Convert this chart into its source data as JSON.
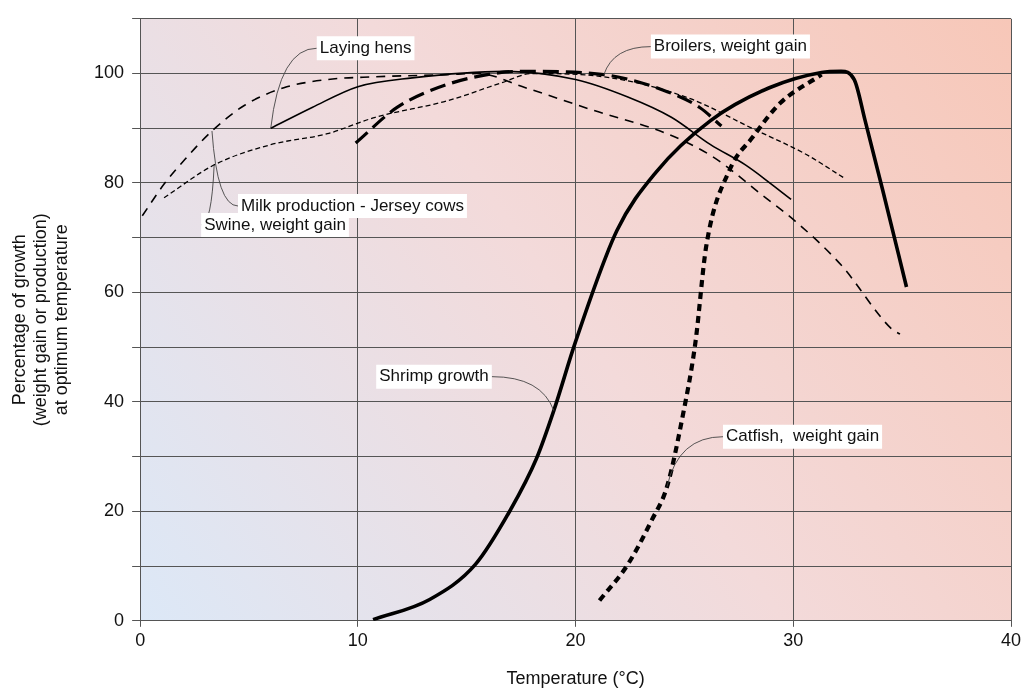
{
  "chart_data": {
    "type": "line",
    "xlabel": "Temperature (°C)",
    "ylabel": "Percentage of growth\n(weight gain or production)\nat optimum temperature",
    "xlim": [
      0,
      40
    ],
    "xticks": [
      0,
      10,
      20,
      30,
      40
    ],
    "ylim": [
      0,
      110
    ],
    "yticks": [
      0,
      {
        "value": 10,
        "label": null
      },
      20,
      {
        "value": 30,
        "label": null
      },
      40,
      {
        "value": 50,
        "label": null
      },
      60,
      {
        "value": 70,
        "label": null
      },
      80,
      {
        "value": 90,
        "label": null
      },
      100,
      {
        "value": 110,
        "label": null
      }
    ],
    "grid": true,
    "legend": false,
    "marker": "none",
    "series": [
      {
        "color": "#000000",
        "line_style": "dashed",
        "x": [
          0.1,
          1.1,
          2.1,
          3.3,
          4.8,
          6.6,
          8.6,
          10.8,
          14.1,
          15.5,
          17.7,
          20.8,
          24.2,
          26.3,
          28.6,
          30.1,
          32.2,
          34.5,
          34.9
        ],
        "values": [
          74,
          79.8,
          84.5,
          89.5,
          94.2,
          97.4,
          98.9,
          99.4,
          99.8,
          100,
          97.4,
          93.3,
          89,
          84.8,
          77.7,
          73,
          65,
          53.4,
          52.4
        ]
      },
      {
        "color": "#000000",
        "line_style": "solid",
        "x": [
          6,
          7.9,
          10,
          12.5,
          16.7,
          20,
          22.4,
          24.4,
          26.2,
          27.8,
          29.9
        ],
        "values": [
          90,
          93.8,
          97.6,
          99.2,
          100.4,
          98.9,
          95.7,
          92,
          87,
          83.3,
          77
        ]
      },
      {
        "color": "#000000",
        "line_style": "dashed",
        "x": [
          1.1,
          3.4,
          6,
          8.6,
          10.8,
          14.1,
          16.6,
          18,
          21.3,
          25.2,
          28.1,
          30.6,
          32.3
        ],
        "values": [
          77.3,
          83.3,
          87,
          89,
          92,
          95,
          98.3,
          100,
          99.4,
          95.5,
          90,
          85.2,
          81
        ]
      },
      {
        "color": "#000000",
        "line_style": "dashed",
        "x": [
          9.9,
          11.8,
          14.1,
          16.6,
          17.5,
          21.3,
          24,
          25.7,
          26.7
        ],
        "values": [
          87.3,
          93.8,
          98,
          100.2,
          100.4,
          99.8,
          97,
          93.8,
          90.4
        ]
      },
      {
        "color": "#000000",
        "line_style": "solid",
        "x": [
          10.7,
          13.3,
          15.4,
          17,
          18.2,
          19,
          20,
          21.9,
          23.7,
          26.2,
          28.9,
          31.3,
          32.2,
          32.8,
          33.3,
          34.1,
          35.2
        ],
        "values": [
          0.2,
          3.9,
          10.3,
          20.2,
          29.6,
          38.4,
          51,
          71.3,
          82,
          91.4,
          97.4,
          100.2,
          100.4,
          98.9,
          91.4,
          78.8,
          61
        ]
      },
      {
        "color": "#000000",
        "line_style": "dashed",
        "x": [
          21.1,
          22.4,
          23.5,
          24.2,
          24.9,
          25.5,
          26,
          27.1,
          28.1,
          29.4,
          31.3
        ],
        "values": [
          3.7,
          10.3,
          18.4,
          24.5,
          37,
          50.7,
          68.4,
          82.6,
          88.2,
          94.6,
          99.8
        ]
      }
    ],
    "annotations": [
      {
        "text": "Laying hens",
        "x": 6,
        "y": 90
      },
      {
        "text": "Milk production - Jersey cows",
        "x": 3.3,
        "y": 89.5
      },
      {
        "text": "Swine, weight gain",
        "x": 3.4,
        "y": 83.3
      },
      {
        "text": "Broilers, weight gain",
        "x": 21.3,
        "y": 99.8
      },
      {
        "text": "Shrimp growth",
        "x": 19,
        "y": 38.4
      },
      {
        "text": "Catfish,  weight gain",
        "x": 24.2,
        "y": 24.5
      }
    ]
  }
}
